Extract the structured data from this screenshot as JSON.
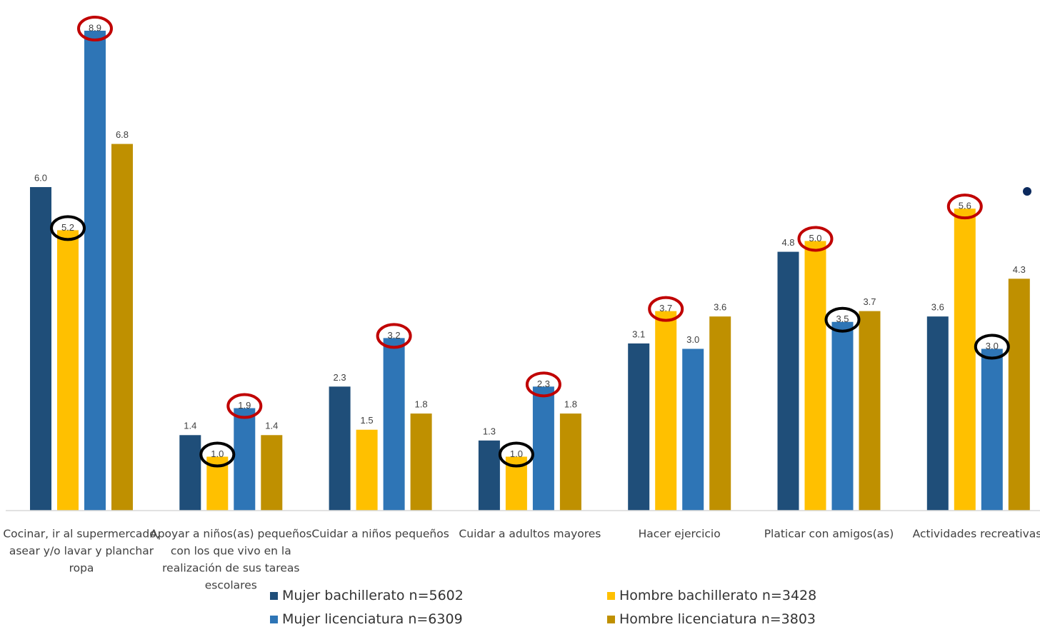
{
  "chart_data": {
    "type": "bar",
    "categories": [
      "Cocinar, ir al supermercado, asear y/o lavar y planchar ropa",
      "Apoyar a niños(as) pequeños con los que vivo en la realización de sus tareas escolares",
      "Cuidar a niños pequeños",
      "Cuidar a adultos mayores",
      "Hacer ejercicio",
      "Platicar con amigos(as)",
      "Actividades recreativas"
    ],
    "category_lines": [
      [
        "Cocinar, ir al supermercado,",
        "asear y/o lavar y planchar",
        "ropa"
      ],
      [
        "Apoyar a niños(as) pequeños",
        "con los que vivo en la",
        "realización de sus tareas",
        "escolares"
      ],
      [
        "Cuidar a niños pequeños"
      ],
      [
        "Cuidar a adultos mayores"
      ],
      [
        "Hacer ejercicio"
      ],
      [
        "Platicar con amigos(as)"
      ],
      [
        "Actividades recreativas"
      ]
    ],
    "series": [
      {
        "name": "Mujer bachillerato n=5602",
        "color": "#1f4e79",
        "values": [
          6.0,
          1.4,
          2.3,
          1.3,
          3.1,
          4.8,
          3.6
        ]
      },
      {
        "name": "Hombre bachillerato n=3428",
        "color": "#ffc000",
        "values": [
          5.2,
          1.0,
          1.5,
          1.0,
          3.7,
          5.0,
          5.6
        ]
      },
      {
        "name": "Mujer licenciatura n=6309",
        "color": "#2e75b6",
        "values": [
          8.9,
          1.9,
          3.2,
          2.3,
          3.0,
          3.5,
          3.0
        ]
      },
      {
        "name": "Hombre licenciatura n=3803",
        "color": "#bf9000",
        "values": [
          6.8,
          1.4,
          1.8,
          1.8,
          3.6,
          3.7,
          4.3
        ]
      }
    ],
    "ylim": [
      0,
      9.5
    ],
    "grid": false,
    "legend_position": "bottom",
    "annotations": {
      "red_circles": [
        [
          0,
          2
        ],
        [
          1,
          2
        ],
        [
          2,
          2
        ],
        [
          3,
          2
        ],
        [
          4,
          1
        ],
        [
          5,
          1
        ],
        [
          6,
          1
        ]
      ],
      "black_circles": [
        [
          0,
          1
        ],
        [
          1,
          1
        ],
        [
          3,
          1
        ],
        [
          5,
          2
        ],
        [
          6,
          2
        ]
      ],
      "red_color": "#c00000",
      "black_color": "#000000",
      "dot_color": "#0c2a5e"
    }
  }
}
